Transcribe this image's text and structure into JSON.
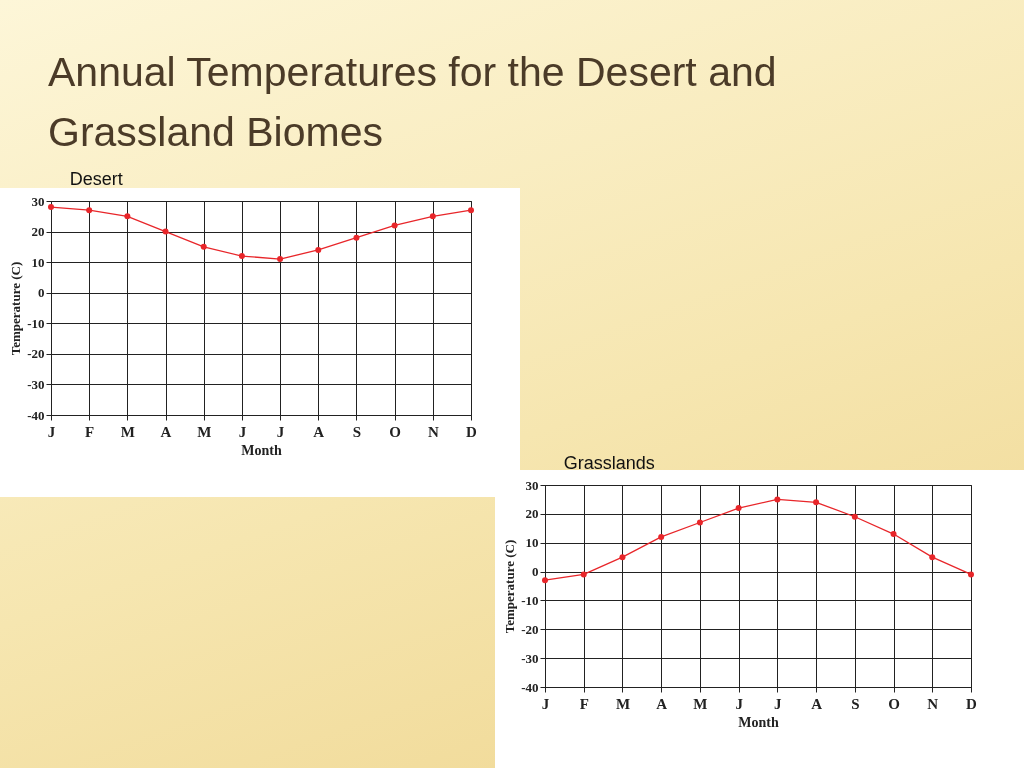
{
  "chart_data": [
    {
      "type": "line",
      "title": "Annual Temperatures for the Desert and Grassland Biomes",
      "subtitle": "Desert",
      "xlabel": "Month",
      "ylabel": "Temperature (C)",
      "categories": [
        "J",
        "F",
        "M",
        "A",
        "M",
        "J",
        "J",
        "A",
        "S",
        "O",
        "N",
        "D"
      ],
      "series": [
        {
          "color": "#e8262a",
          "values": [
            28,
            27,
            25,
            20,
            15,
            12,
            11,
            14,
            18,
            22,
            25,
            27
          ]
        }
      ],
      "ylim": [
        -40,
        30
      ],
      "yticks": [
        -40,
        -30,
        -20,
        -10,
        0,
        10,
        20,
        30
      ],
      "grid": true,
      "marker": "circle"
    },
    {
      "type": "line",
      "title": "Grasslands",
      "xlabel": "Month",
      "ylabel": "Temperature (C)",
      "categories": [
        "J",
        "F",
        "M",
        "A",
        "M",
        "J",
        "J",
        "A",
        "S",
        "O",
        "N",
        "D"
      ],
      "series": [
        {
          "color": "#e8262a",
          "values": [
            -3,
            -1,
            5,
            12,
            17,
            22,
            25,
            24,
            19,
            13,
            5,
            -1
          ]
        }
      ],
      "ylim": [
        -40,
        30
      ],
      "yticks": [
        -40,
        -30,
        -20,
        -10,
        0,
        10,
        20,
        30
      ],
      "grid": true,
      "marker": "circle"
    }
  ]
}
